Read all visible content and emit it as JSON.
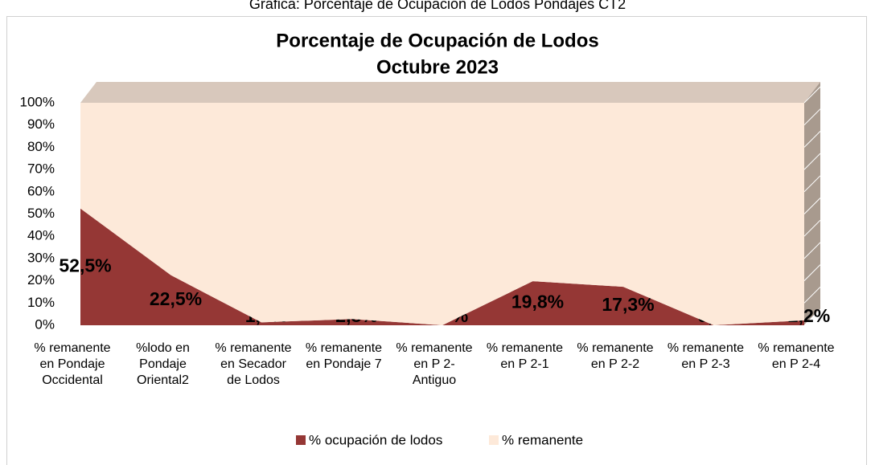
{
  "header": {
    "caption": "Gráfica: Porcentaje de Ocupación de Lodos Pondajes CT2"
  },
  "chart_data": {
    "type": "area",
    "stacked": true,
    "title": "Porcentaje de Ocupación de Lodos",
    "subtitle": "Octubre 2023",
    "categories": [
      "% remanente en Pondaje Occidental",
      "%lodo en Pondaje Oriental2",
      "% remanente en Secador de Lodos",
      "% remanente en Pondaje 7",
      "% remanente en P 2-Antiguo",
      "% remanente en P 2-1",
      "% remanente en P 2-2",
      "% remanente en P 2-3",
      "% remanente en P 2-4"
    ],
    "series": [
      {
        "name": "% ocupación de lodos",
        "color": "#953735",
        "values": [
          52.5,
          22.5,
          1.3,
          2.8,
          0,
          19.8,
          17.3,
          0,
          2.2
        ],
        "value_labels": [
          "52,5%",
          "22,5%",
          "1,3%",
          "2,8%",
          "0,0%",
          "19,8%",
          "17,3%",
          "0,0%",
          "2,2%"
        ]
      },
      {
        "name": "% remanente",
        "color": "#fde9d9",
        "values": [
          47.5,
          77.5,
          98.7,
          97.2,
          100,
          80.2,
          82.7,
          100,
          97.8
        ]
      }
    ],
    "ylim": [
      0,
      100
    ],
    "yticks": [
      {
        "value": 0,
        "label": "0%"
      },
      {
        "value": 10,
        "label": "10%"
      },
      {
        "value": 20,
        "label": "20%"
      },
      {
        "value": 30,
        "label": "30%"
      },
      {
        "value": 40,
        "label": "40%"
      },
      {
        "value": 50,
        "label": "50%"
      },
      {
        "value": 60,
        "label": "60%"
      },
      {
        "value": 70,
        "label": "70%"
      },
      {
        "value": 80,
        "label": "80%"
      },
      {
        "value": 90,
        "label": "90%"
      },
      {
        "value": 100,
        "label": "100%"
      }
    ],
    "grid": true,
    "legend": "bottom"
  }
}
